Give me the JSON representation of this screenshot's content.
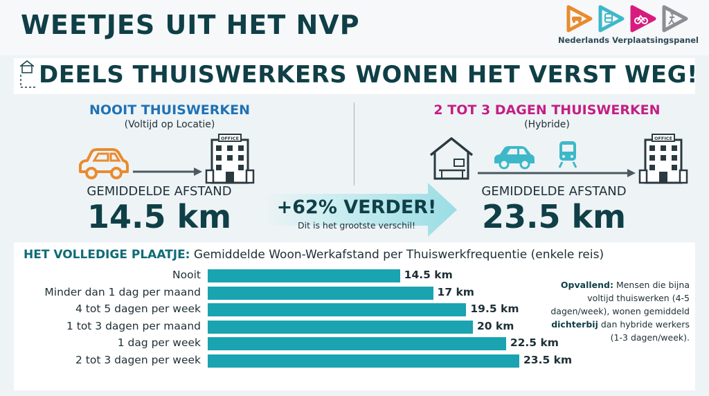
{
  "header": {
    "title": "WEETJES UIT HET NVP",
    "logo_text": "Nederlands Verplaatsingspanel",
    "logo_icons": [
      "car-icon",
      "train-icon",
      "bicycle-icon",
      "walking-icon"
    ]
  },
  "headline": "DEELS THUISWERKERS WONEN HET VERST WEG!",
  "left_panel": {
    "title": "NOOIT THUISWERKEN",
    "subtitle": "(Voltijd op Locatie)",
    "office_sign": "OFFICE",
    "afstand_label": "GEMIDDELDE AFSTAND",
    "afstand_value": "14.5 km",
    "title_color": "#1f72b5"
  },
  "right_panel": {
    "title": "2 TOT 3 DAGEN THUISWERKEN",
    "subtitle": "(Hybride)",
    "office_sign": "OFFICE",
    "afstand_label": "GEMIDDELDE AFSTAND",
    "afstand_value": "23.5 km",
    "title_color": "#c41e83"
  },
  "comparison": {
    "main": "+62% VERDER!",
    "sub": "Dit is het grootste verschil!"
  },
  "chart_data": {
    "type": "bar",
    "orientation": "horizontal",
    "title_bold": "HET VOLLEDIGE PLAATJE:",
    "title": "Gemiddelde Woon-Werkafstand per Thuiswerkfrequentie (enkele reis)",
    "categories": [
      "Nooit",
      "Minder dan 1 dag per maand",
      "4 tot 5 dagen per week",
      "1 tot 3 dagen per maand",
      "1 dag per week",
      "2 tot 3 dagen per week"
    ],
    "values": [
      14.5,
      17,
      19.5,
      20,
      22.5,
      23.5
    ],
    "value_labels": [
      "14.5 km",
      "17 km",
      "19.5 km",
      "20 km",
      "22.5 km",
      "23.5 km"
    ],
    "unit": "km",
    "xlim": [
      0,
      23.5
    ],
    "grid": false,
    "bar_color": "#1aa3b0"
  },
  "note": {
    "bold1": "Opvallend:",
    "text1": " Mensen die bijna voltijd thuiswerken (4-5 dagen/week), wonen gemiddeld ",
    "bold2": "dichterbij",
    "text2": " dan hybride werkers (1-3 dagen/week)."
  },
  "colors": {
    "dark": "#0f3f47",
    "teal": "#1aa3b0",
    "orange": "#e88b2e",
    "cyan": "#3db8c8",
    "pink": "#d81b7e",
    "grey": "#8a8f93"
  }
}
